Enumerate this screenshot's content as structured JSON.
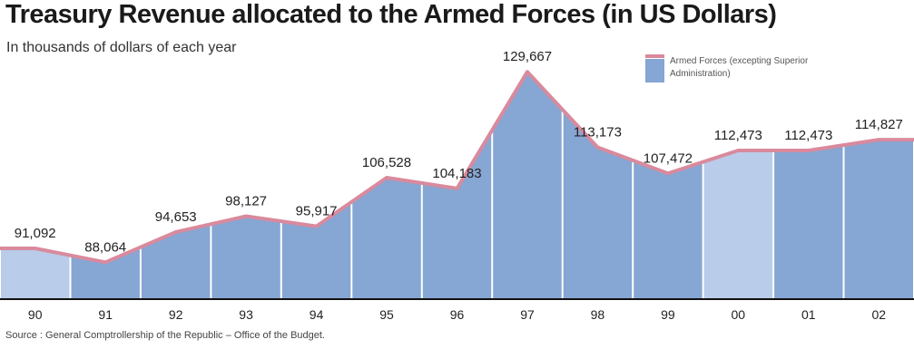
{
  "title": "Treasury Revenue allocated to the Armed Forces (in US Dollars)",
  "subtitle": "In thousands of dollars of each year",
  "source": "Source : General Comptrollership of the Republic – Office of the Budget.",
  "legend": {
    "line1": "Armed Forces (excepting Superior",
    "line2": "Administration)"
  },
  "colors": {
    "area": "#86a6d3",
    "area_light": "#b9cce9",
    "line": "#d98a9d",
    "baseline": "#111111"
  },
  "chart_data": {
    "type": "area",
    "title": "Treasury Revenue allocated to the Armed Forces (in US Dollars)",
    "subtitle": "In thousands of dollars of each year",
    "categories": [
      "90",
      "91",
      "92",
      "93",
      "94",
      "95",
      "96",
      "97",
      "98",
      "99",
      "00",
      "01",
      "02"
    ],
    "series": [
      {
        "name": "Armed Forces (excepting Superior Administration)",
        "values": [
          91092,
          88064,
          94653,
          98127,
          95917,
          106528,
          104183,
          129667,
          113173,
          107472,
          112473,
          112473,
          114827
        ]
      }
    ],
    "labels": [
      "91,092",
      "88,064",
      "94,653",
      "98,127",
      "95,917",
      "106,528",
      "104,183",
      "129,667",
      "113,173",
      "107,472",
      "112,473",
      "112,473",
      "114,827"
    ],
    "grid": false,
    "legend_position": "top-right"
  }
}
